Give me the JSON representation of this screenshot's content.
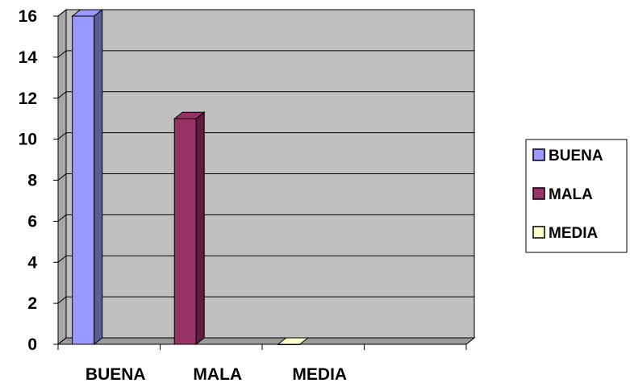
{
  "chart_data": {
    "type": "bar",
    "categories": [
      "BUENA",
      "MALA",
      "MEDIA"
    ],
    "series": [
      {
        "name": "BUENA",
        "values": [
          16,
          null,
          null
        ],
        "color": "#9999ff"
      },
      {
        "name": "MALA",
        "values": [
          null,
          11,
          null
        ],
        "color": "#993366"
      },
      {
        "name": "MEDIA",
        "values": [
          null,
          null,
          0
        ],
        "color": "#ffffcc"
      }
    ],
    "ylim": [
      0,
      16
    ],
    "yticks": [
      0,
      2,
      4,
      6,
      8,
      10,
      12,
      14,
      16
    ],
    "title": "",
    "xlabel": "",
    "ylabel": "",
    "grid": true,
    "legend_position": "right",
    "plot_background": "#c0c0c0"
  }
}
